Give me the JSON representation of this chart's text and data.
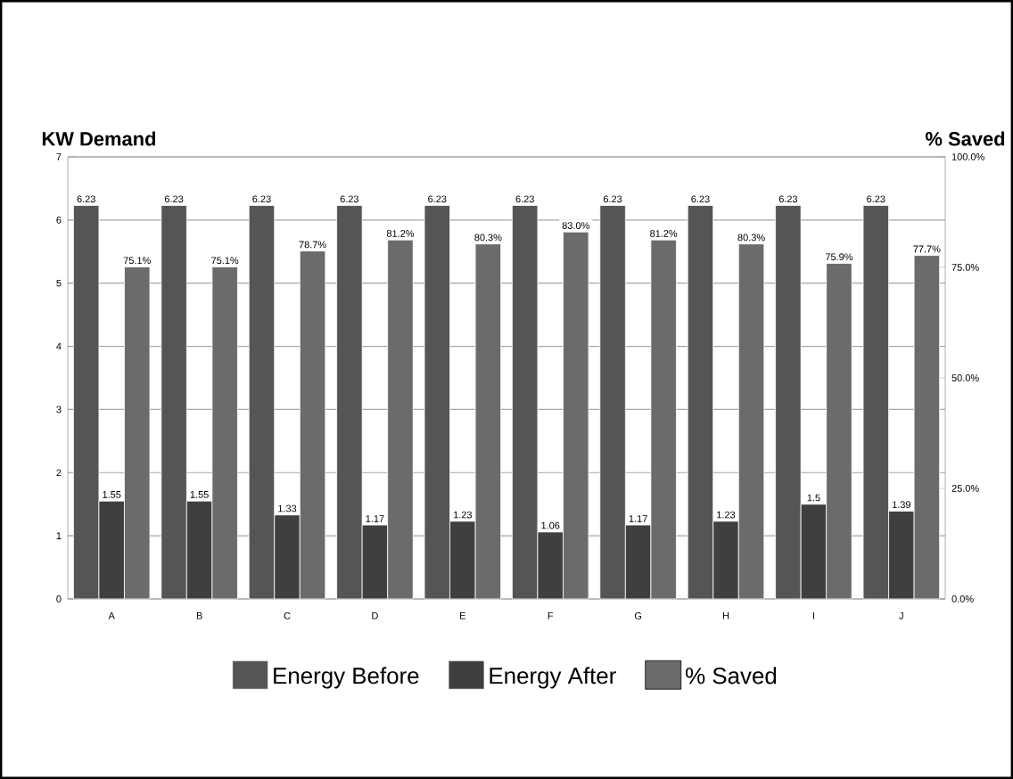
{
  "chart_data": {
    "type": "bar",
    "ylabel": "KW Demand",
    "y2label": "% Saved",
    "categories": [
      "A",
      "B",
      "C",
      "D",
      "E",
      "F",
      "G",
      "H",
      "I",
      "J"
    ],
    "series": [
      {
        "name": "Energy Before",
        "color": "#555555",
        "values": [
          6.23,
          6.23,
          6.23,
          6.23,
          6.23,
          6.23,
          6.23,
          6.23,
          6.23,
          6.23
        ]
      },
      {
        "name": "Energy After",
        "color": "#3f3f3f",
        "values": [
          1.55,
          1.55,
          1.33,
          1.17,
          1.23,
          1.06,
          1.17,
          1.23,
          1.5,
          1.39
        ]
      },
      {
        "name": "% Saved",
        "color": "#6b6b6b",
        "axis": "y2",
        "values": [
          75.1,
          75.1,
          78.7,
          81.2,
          80.3,
          83.0,
          81.2,
          80.3,
          75.9,
          77.7
        ],
        "value_labels": [
          "75.1%",
          "75.1%",
          "78.7%",
          "81.2%",
          "80.3%",
          "83.0%",
          "81.2%",
          "80.3%",
          "75.9%",
          "77.7%"
        ]
      }
    ],
    "ylim": [
      0,
      7
    ],
    "yticks": [
      0,
      1,
      2,
      3,
      4,
      5,
      6,
      7
    ],
    "y2lim": [
      0,
      100
    ],
    "y2ticks": [
      {
        "value": 0,
        "label": "0.0%"
      },
      {
        "value": 25,
        "label": "25.0%"
      },
      {
        "value": 50,
        "label": "50.0%"
      },
      {
        "value": 75,
        "label": "75.0%"
      },
      {
        "value": 100,
        "label": "100.0%"
      }
    ],
    "data_labels": true,
    "grid": "y",
    "legend": "bottom"
  }
}
